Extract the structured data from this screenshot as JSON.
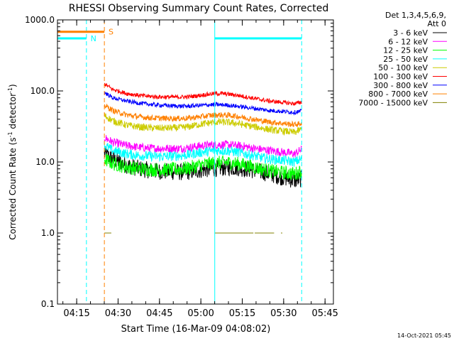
{
  "chart_data": {
    "type": "line",
    "title": "RHESSI Observing Summary Count Rates, Corrected",
    "xlabel": "Start Time (16-Mar-09 04:08:02)",
    "ylabel": "Corrected Count Rate (s⁻¹ detector⁻¹)",
    "ylabel_main": "Corrected Count Rate (s",
    "ylabel_sup1": "-1",
    "ylabel_mid": " detector",
    "ylabel_sup2": "-1",
    "ylabel_end": ")",
    "yscale": "log",
    "ylim": [
      0.1,
      1000
    ],
    "xlim_minutes": [
      0,
      100
    ],
    "y_ticks": [
      "1000.0",
      "100.0",
      "10.0",
      "1.0",
      "0.1"
    ],
    "x_ticks": [
      "04:15",
      "04:30",
      "04:45",
      "05:00",
      "05:15",
      "05:30",
      "05:45"
    ],
    "legend_header": [
      "Det 1,3,4,5,6,9,",
      "Att 0"
    ],
    "series": [
      {
        "name": "3 - 6 keV",
        "color": "#000000",
        "x": [
          17,
          20,
          25,
          30,
          35,
          40,
          45,
          48,
          50,
          53,
          56,
          59,
          62,
          65,
          68,
          71,
          74,
          77,
          80,
          83,
          86,
          88.5
        ],
        "y": [
          13,
          11,
          9,
          8,
          7.5,
          7.3,
          7.2,
          7.3,
          7.5,
          7.8,
          8,
          8.2,
          8.4,
          8.3,
          8,
          7.6,
          7.2,
          6.8,
          6.3,
          5.9,
          5.5,
          5.8
        ]
      },
      {
        "name": "6 - 12 keV",
        "color": "#ff00ff",
        "x": [
          17,
          20,
          25,
          30,
          35,
          40,
          45,
          48,
          50,
          53,
          56,
          59,
          62,
          65,
          68,
          71,
          74,
          77,
          80,
          83,
          86,
          88.5
        ],
        "y": [
          22,
          19,
          17,
          16,
          15.5,
          15.5,
          15.5,
          16,
          16.5,
          17,
          17.5,
          17.5,
          17.5,
          17,
          16.5,
          15.5,
          15,
          14.5,
          14,
          13.5,
          13,
          15
        ]
      },
      {
        "name": "12 - 25 keV",
        "color": "#00ff00",
        "x": [
          17,
          20,
          25,
          30,
          35,
          40,
          45,
          48,
          50,
          53,
          56,
          59,
          62,
          65,
          68,
          71,
          74,
          77,
          80,
          83,
          86,
          88.5
        ],
        "y": [
          11,
          9.5,
          8.5,
          8,
          7.8,
          7.8,
          8,
          8.3,
          8.7,
          9.2,
          9.6,
          9.8,
          9.8,
          9.5,
          9,
          8.5,
          8,
          7.5,
          7.2,
          7,
          6.8,
          7.5
        ]
      },
      {
        "name": "25 - 50 keV",
        "color": "#00ffff",
        "x": [
          17,
          20,
          25,
          30,
          35,
          40,
          45,
          48,
          50,
          53,
          56,
          59,
          62,
          65,
          68,
          71,
          74,
          77,
          80,
          83,
          86,
          88.5
        ],
        "y": [
          17,
          14.5,
          13,
          12.3,
          12,
          12,
          12.3,
          12.7,
          13.2,
          13.8,
          14.3,
          14.5,
          14.3,
          13.8,
          13,
          12.3,
          11.5,
          11,
          10.7,
          10.4,
          10,
          11
        ]
      },
      {
        "name": "50 - 100 keV",
        "color": "#cccc00",
        "x": [
          17,
          20,
          25,
          30,
          35,
          40,
          45,
          48,
          50,
          53,
          56,
          59,
          62,
          65,
          68,
          71,
          74,
          77,
          80,
          83,
          86,
          88.5
        ],
        "y": [
          45,
          38,
          33,
          31,
          30,
          30,
          30.5,
          31.5,
          33,
          34.5,
          36,
          36.5,
          36,
          35,
          33,
          31.5,
          30,
          28.5,
          27.5,
          27,
          26,
          29
        ]
      },
      {
        "name": "100 - 300 keV",
        "color": "#ff0000",
        "x": [
          17,
          20,
          25,
          30,
          35,
          40,
          45,
          48,
          50,
          53,
          56,
          59,
          62,
          65,
          68,
          71,
          74,
          77,
          80,
          83,
          86,
          88.5
        ],
        "y": [
          125,
          105,
          92,
          86,
          83,
          82,
          82,
          83,
          85,
          88,
          91,
          92,
          90,
          87,
          83,
          79,
          75,
          72,
          70,
          68,
          66,
          70
        ]
      },
      {
        "name": "300 - 800 keV",
        "color": "#0000ff",
        "x": [
          17,
          20,
          25,
          30,
          35,
          40,
          45,
          48,
          50,
          53,
          56,
          59,
          62,
          65,
          68,
          71,
          74,
          77,
          80,
          83,
          86,
          88.5
        ],
        "y": [
          95,
          80,
          72,
          67,
          64,
          62,
          61,
          61,
          62,
          63,
          64,
          64,
          63,
          61,
          59,
          57,
          55,
          53,
          52,
          51,
          50,
          52
        ]
      },
      {
        "name": "800 - 7000 keV",
        "color": "#ff8000",
        "x": [
          17,
          20,
          25,
          30,
          35,
          40,
          45,
          48,
          50,
          53,
          56,
          59,
          62,
          65,
          68,
          71,
          74,
          77,
          80,
          83,
          86,
          88.5
        ],
        "y": [
          63,
          53,
          46,
          43,
          41.5,
          41,
          41,
          41.5,
          42.5,
          44,
          45.5,
          46,
          45.5,
          44,
          42,
          40,
          38,
          36.5,
          35.5,
          34.5,
          33.5,
          35
        ]
      },
      {
        "name": "7000 - 15000 keV",
        "color": "#808000",
        "x": [
          17,
          19.5,
          57,
          71,
          71.5,
          78.5,
          81,
          81.5,
          88.5
        ],
        "y": [
          1.0,
          1.0,
          1.0,
          1.0,
          1.0,
          1.0,
          1.0,
          1.0,
          1.0
        ]
      }
    ],
    "flags": [
      {
        "label": "N",
        "color": "#00ffff"
      },
      {
        "label": "S",
        "color": "#ff8000"
      }
    ],
    "flag_bars": [
      {
        "color": "#00ffff",
        "x_start": 0,
        "x_end": 10.5,
        "y": 550
      },
      {
        "color": "#ff8000",
        "x_start": 0,
        "x_end": 17,
        "y": 680
      },
      {
        "color": "#00ffff",
        "x_start": 57,
        "x_end": 88.5,
        "y": 550
      }
    ],
    "vertical_lines": [
      {
        "color": "#00ffff",
        "style": "dashed",
        "x": 10.5
      },
      {
        "color": "#ff8000",
        "style": "dashed",
        "x": 17
      },
      {
        "color": "#00ffff",
        "style": "solid",
        "x": 57
      },
      {
        "color": "#00ffff",
        "style": "dashed",
        "x": 88.5
      }
    ],
    "footer_timestamp": "14-Oct-2021 05:45"
  }
}
